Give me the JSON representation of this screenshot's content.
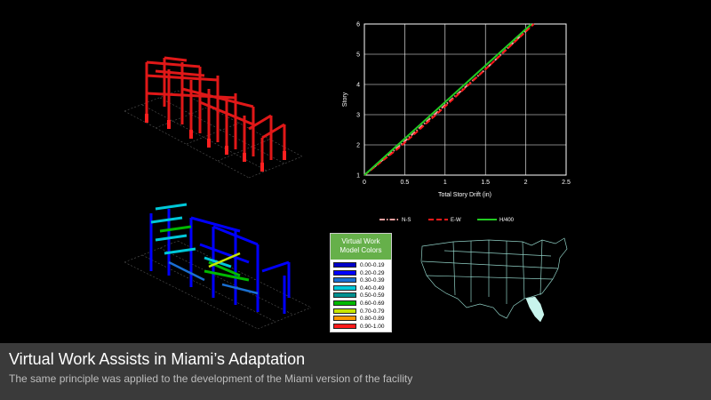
{
  "caption": {
    "title": "Virtual Work Assists in Miami’s Adaptation",
    "subtitle": "The same principle was applied to the development of the Miami version of the facility"
  },
  "legend": {
    "heading_line1": "Virtual Work",
    "heading_line2": "Model Colors",
    "items": [
      {
        "label": "0.00-0.19",
        "color": "#0000c8"
      },
      {
        "label": "0.20-0.29",
        "color": "#0000ff"
      },
      {
        "label": "0.30-0.39",
        "color": "#1a6fd1"
      },
      {
        "label": "0.40-0.49",
        "color": "#00c8d8"
      },
      {
        "label": "0.50-0.59",
        "color": "#009090"
      },
      {
        "label": "0.60-0.69",
        "color": "#00b800"
      },
      {
        "label": "0.70-0.79",
        "color": "#c8e600"
      },
      {
        "label": "0.80-0.89",
        "color": "#ff9a00"
      },
      {
        "label": "0.90-1.00",
        "color": "#ff1a1a"
      }
    ]
  },
  "chart_data": {
    "type": "line",
    "title": "",
    "xlabel": "Total Story Drift (in)",
    "ylabel": "Story",
    "xlim": [
      0,
      2.5
    ],
    "ylim": [
      1,
      6
    ],
    "xticks": [
      "0",
      "0.5",
      "1",
      "1.5",
      "2",
      "2.5"
    ],
    "yticks": [
      "1",
      "2",
      "3",
      "4",
      "5",
      "6"
    ],
    "grid": true,
    "legend_position": "bottom",
    "series": [
      {
        "name": "N-S",
        "color": "#f4a0a0",
        "style": "dashdot",
        "x": [
          0,
          0.45,
          0.95,
          1.5,
          2.05
        ],
        "y": [
          1,
          2,
          3.2,
          4.5,
          5.9
        ]
      },
      {
        "name": "E-W",
        "color": "#ff1a1a",
        "style": "dash",
        "x": [
          0,
          0.45,
          0.95,
          1.5,
          2.1
        ],
        "y": [
          1,
          1.95,
          3.15,
          4.5,
          6.0
        ]
      },
      {
        "name": "H/400",
        "color": "#22cc22",
        "style": "solid",
        "x": [
          0,
          2.07
        ],
        "y": [
          1,
          6
        ]
      }
    ]
  },
  "colors": {
    "background": "#000000",
    "caption_bar": "#3a3a3a",
    "frame_red": "#e01818",
    "legend_head": "#66b04a",
    "florida": "#c8f4ec"
  }
}
